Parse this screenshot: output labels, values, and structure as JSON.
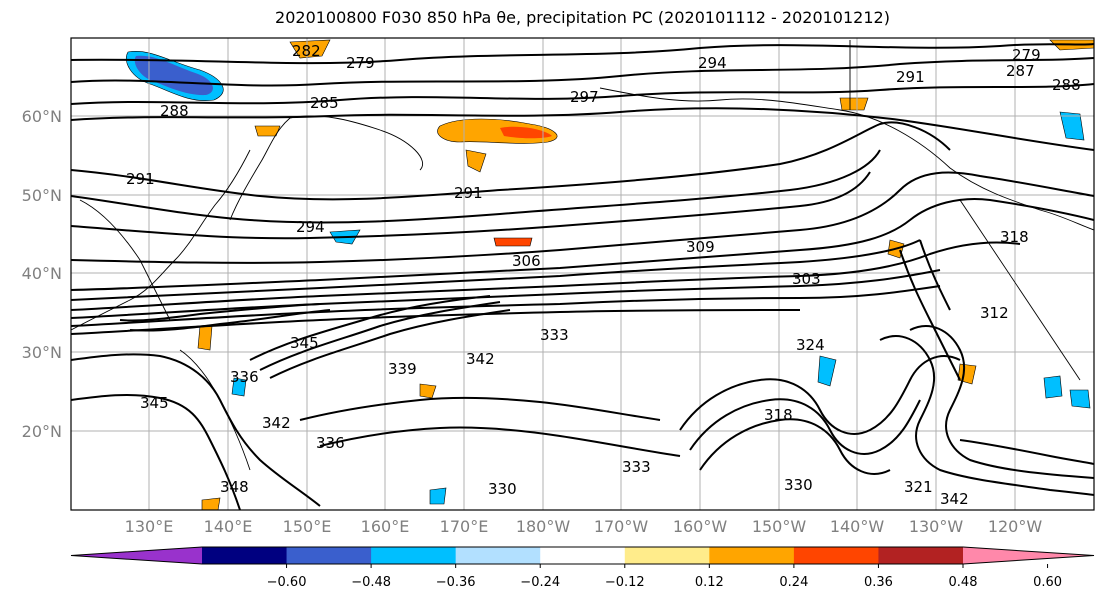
{
  "title": "2020100800 F030 850 hPa θe, precipitation PC (2020101112 - 2020101212)",
  "map": {
    "lat_labels": [
      "60°N",
      "50°N",
      "40°N",
      "30°N",
      "20°N"
    ],
    "lon_labels": [
      "130°E",
      "140°E",
      "150°E",
      "160°E",
      "170°E",
      "180°W",
      "170°W",
      "160°W",
      "150°W",
      "140°W",
      "130°W",
      "120°W"
    ],
    "contour_labels": [
      "282",
      "279",
      "285",
      "288",
      "291",
      "291",
      "294",
      "294",
      "297",
      "291",
      "288",
      "279",
      "287",
      "303",
      "306",
      "309",
      "345",
      "342",
      "339",
      "336",
      "333",
      "336",
      "345",
      "342",
      "348",
      "330",
      "333",
      "318",
      "321",
      "324",
      "330",
      "342",
      "318",
      "312"
    ]
  },
  "colorbar": {
    "colors": [
      "#9932CC",
      "#000080",
      "#3A5FCD",
      "#00BFFF",
      "#B2E0FF",
      "#FFFFFF",
      "#FFEC8B",
      "#FFA500",
      "#FF4500",
      "#B22222",
      "#FF88AA"
    ],
    "ticks": [
      "−0.60",
      "−0.48",
      "−0.36",
      "−0.24",
      "−0.12",
      "0.12",
      "0.24",
      "0.36",
      "0.48",
      "0.60"
    ]
  }
}
